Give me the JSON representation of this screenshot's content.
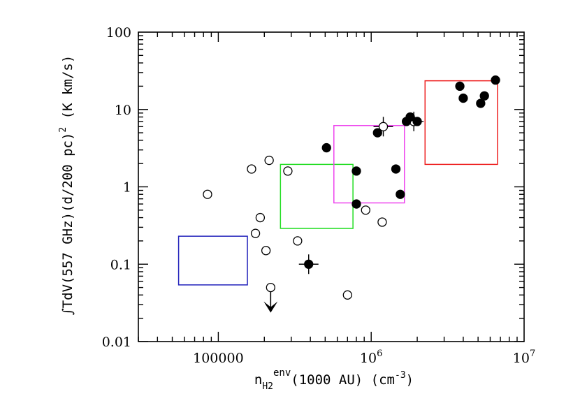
{
  "chart_data": {
    "type": "scatter",
    "xscale": "log",
    "yscale": "log",
    "xlim": [
      30000,
      10000000
    ],
    "ylim": [
      0.01,
      100
    ],
    "xticks": [
      {
        "value": 100000,
        "label": "100000"
      },
      {
        "value": 1000000,
        "label": "10",
        "exp": "6"
      },
      {
        "value": 10000000,
        "label": "10",
        "exp": "7"
      }
    ],
    "yticks": [
      {
        "value": 0.01,
        "label": "0.01"
      },
      {
        "value": 0.1,
        "label": "0.1"
      },
      {
        "value": 1,
        "label": "1"
      },
      {
        "value": 10,
        "label": "10"
      },
      {
        "value": 100,
        "label": "100"
      }
    ],
    "xlabel": {
      "main": "n",
      "sub": "H2",
      "sup": "env",
      "rest": "(1000 AU) (cm",
      "unit_sup": "-3",
      "close": ")"
    },
    "ylabel": {
      "integral": "∫",
      "main": "TdV(557 GHz)(d/200 pc)",
      "sup": "2",
      "rest": " (K km/s)"
    },
    "grid": false,
    "legend": "none",
    "series": [
      {
        "marker": "open-circle",
        "points": [
          {
            "x": 85000,
            "y": 0.8
          },
          {
            "x": 165000,
            "y": 1.7
          },
          {
            "x": 175000,
            "y": 0.25
          },
          {
            "x": 188000,
            "y": 0.4
          },
          {
            "x": 205000,
            "y": 0.15
          },
          {
            "x": 215000,
            "y": 2.2
          },
          {
            "x": 285000,
            "y": 1.6
          },
          {
            "x": 330000,
            "y": 0.2
          },
          {
            "x": 700000,
            "y": 0.04
          },
          {
            "x": 920000,
            "y": 0.5
          },
          {
            "x": 1180000,
            "y": 0.35
          },
          {
            "x": 1200000,
            "y": 6.0,
            "xerr": true,
            "yerr": true
          },
          {
            "x": 1900000,
            "y": 7.0,
            "xerr": true,
            "yerr": true
          },
          {
            "x": 220000,
            "y": 0.05,
            "upper_limit": true
          }
        ]
      },
      {
        "marker": "filled-circle",
        "points": [
          {
            "x": 390000,
            "y": 0.1,
            "xerr": true,
            "yerr": true
          },
          {
            "x": 510000,
            "y": 3.2
          },
          {
            "x": 800000,
            "y": 1.6
          },
          {
            "x": 800000,
            "y": 0.6
          },
          {
            "x": 1100000,
            "y": 5.0
          },
          {
            "x": 1450000,
            "y": 1.7
          },
          {
            "x": 1550000,
            "y": 0.8
          },
          {
            "x": 1700000,
            "y": 7.0
          },
          {
            "x": 1800000,
            "y": 8.0
          },
          {
            "x": 2000000,
            "y": 7.0
          },
          {
            "x": 3800000,
            "y": 20.0
          },
          {
            "x": 4000000,
            "y": 14.0
          },
          {
            "x": 5200000,
            "y": 12.0
          },
          {
            "x": 5500000,
            "y": 15.0
          },
          {
            "x": 6500000,
            "y": 24.0
          }
        ]
      }
    ],
    "boxes": [
      {
        "color": "#2222bb",
        "x": [
          55000,
          155000
        ],
        "y": [
          0.054,
          0.23
        ]
      },
      {
        "color": "#22dd22",
        "x": [
          255000,
          760000
        ],
        "y": [
          0.29,
          1.95
        ]
      },
      {
        "color": "#ee44ee",
        "x": [
          570000,
          1650000
        ],
        "y": [
          0.62,
          6.2
        ]
      },
      {
        "color": "#ee2222",
        "x": [
          2250000,
          6700000
        ],
        "y": [
          1.95,
          23.5
        ]
      }
    ]
  }
}
